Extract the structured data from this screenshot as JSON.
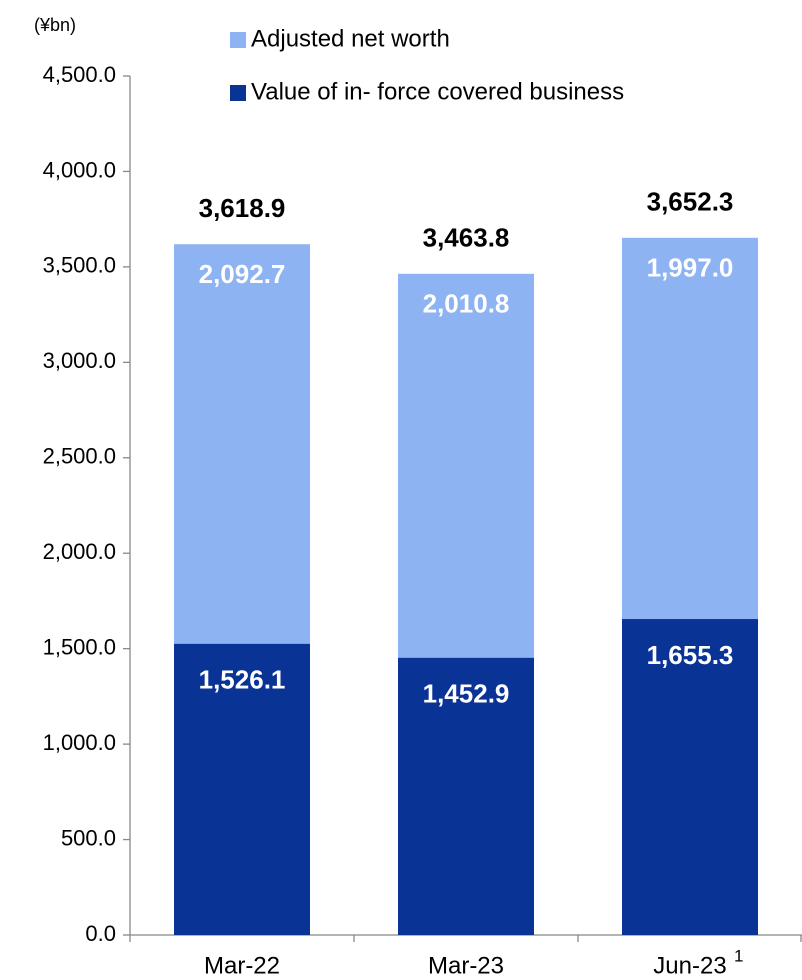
{
  "chart_data": {
    "type": "stacked-bar",
    "unit": "(¥bn)",
    "categories": [
      "Mar-22",
      "Mar-23",
      "Jun-23"
    ],
    "annotations": [
      {
        "category": 2,
        "text": "1"
      }
    ],
    "series": [
      {
        "name": "Value of in- force covered business",
        "color": "#0a3396",
        "values": [
          1526.1,
          1452.9,
          1655.3
        ],
        "value_labels": [
          "1,526.1",
          "1,452.9",
          "1,655.3"
        ]
      },
      {
        "name": "Adjusted net worth",
        "color": "#8db3f2",
        "values": [
          2092.7,
          2010.8,
          1997.0
        ],
        "value_labels": [
          "2,092.7",
          "2,010.8",
          "1,997.0"
        ]
      }
    ],
    "totals": [
      3618.9,
      3463.8,
      3652.3
    ],
    "total_labels": [
      "3,618.9",
      "3,463.8",
      "3,652.3"
    ],
    "ylim": [
      0,
      4500
    ],
    "yticks": [
      {
        "value": 0,
        "label": "0.0"
      },
      {
        "value": 500,
        "label": "500.0"
      },
      {
        "value": 1000,
        "label": "1,000.0"
      },
      {
        "value": 1500,
        "label": "1,500.0"
      },
      {
        "value": 2000,
        "label": "2,000.0"
      },
      {
        "value": 2500,
        "label": "2,500.0"
      },
      {
        "value": 3000,
        "label": "3,000.0"
      },
      {
        "value": 3500,
        "label": "3,500.0"
      },
      {
        "value": 4000,
        "label": "4,000.0"
      },
      {
        "value": 4500,
        "label": "4,500.0"
      }
    ],
    "grid": false
  }
}
